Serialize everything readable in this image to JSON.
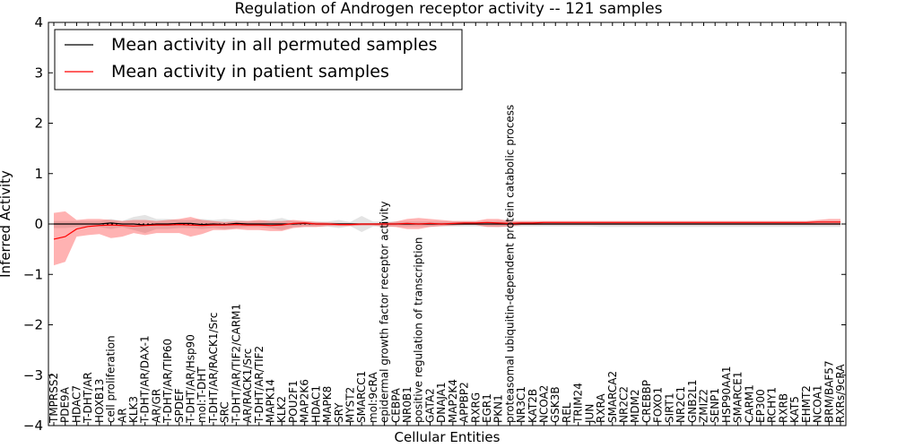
{
  "chart_data": {
    "type": "line",
    "title": "Regulation of Androgen receptor activity -- 121 samples",
    "xlabel": "Cellular Entities",
    "ylabel": "Inferred Activity",
    "ylim": [
      -4,
      4
    ],
    "yticks": [
      "-4",
      "-3",
      "-2",
      "-1",
      "0",
      "1",
      "2",
      "3",
      "4"
    ],
    "legend": {
      "placement": "top-left",
      "entries": [
        {
          "label": "Mean activity in all permuted samples",
          "color": "#000000"
        },
        {
          "label": "Mean activity in patient samples",
          "color": "#ff0000"
        }
      ]
    },
    "categories": [
      "TMPRSS2",
      "PDE9A",
      "HDAC7",
      "T-DHT/AR",
      "HOXB13",
      "cell proliferation",
      "AR",
      "KLK3",
      "T-DHT/AR/DAX-1",
      "AR/GR",
      "T-DHT/AR/TIP60",
      "SPDEF",
      "T-DHT/AR/Hsp90",
      "mol:T-DHT",
      "T-DHT/AR/RACK1/Src",
      "SRC",
      "T-DHT/AR/TIF2/CARM1",
      "AR/RACK1/Src",
      "T-DHT/AR/TIF2",
      "MAPK14",
      "KLK2",
      "POU2F1",
      "MAP2K6",
      "HDAC1",
      "MAPK8",
      "SRY",
      "MYST2",
      "SMARCC1",
      "mol:9cRA",
      "epidermal growth factor receptor activity",
      "CEBPA",
      "NR0B1",
      "positive regulation of transcription",
      "GATA2",
      "DNAJA1",
      "MAP2K4",
      "APPBP2",
      "RXRG",
      "EGR1",
      "PKN1",
      "proteasomal ubiquitin-dependent protein catabolic process",
      "NR3C1",
      "KAT2B",
      "NCOA2",
      "GSK3B",
      "REL",
      "TRIM24",
      "JUN",
      "RXRA",
      "SMARCA2",
      "NR2C2",
      "MDM2",
      "CREBBP",
      "FOXO1",
      "SIRT1",
      "NR2C1",
      "GNB2L1",
      "ZMIZ2",
      "SENP1",
      "HSP90AA1",
      "SMARCE1",
      "CARM1",
      "EP300",
      "RCHY1",
      "RXRB",
      "KAT5",
      "EHMT2",
      "NCOA1",
      "BRM/BAF57",
      "RXRs/9cRA"
    ],
    "series": [
      {
        "name": "Mean activity in all permuted samples",
        "color": "#000000",
        "values": [
          0,
          0,
          0,
          0,
          0,
          0.02,
          0,
          0,
          -0.02,
          0,
          0,
          0.01,
          0.01,
          -0.01,
          0,
          -0.01,
          0.01,
          0,
          0,
          0,
          0,
          0,
          0.01,
          0,
          0,
          0,
          0,
          0,
          0,
          0,
          0,
          0,
          0,
          0,
          0,
          0,
          0,
          0,
          0,
          0,
          0,
          0,
          0,
          0,
          0,
          0,
          0,
          0,
          0,
          0,
          0,
          0,
          0,
          0,
          0,
          0,
          0,
          0,
          0,
          0,
          0,
          0,
          0,
          0,
          0,
          0,
          0,
          0,
          0,
          0
        ]
      },
      {
        "name": "Mean activity in patient samples",
        "color": "#ff0000",
        "values": [
          -0.3,
          -0.25,
          -0.1,
          -0.05,
          -0.03,
          -0.02,
          -0.03,
          -0.04,
          -0.03,
          -0.02,
          -0.02,
          -0.01,
          -0.02,
          -0.03,
          -0.02,
          -0.02,
          -0.01,
          -0.02,
          -0.02,
          -0.03,
          -0.02,
          0.01,
          0.02,
          0,
          0,
          -0.01,
          -0.01,
          0,
          0,
          0,
          0,
          0.01,
          0,
          0.01,
          0,
          0.01,
          0.02,
          0.02,
          0.03,
          0.02,
          0.01,
          0.02,
          0.02,
          0.03,
          0.03,
          0.03,
          0.03,
          0.03,
          0.03,
          0.03,
          0.03,
          0.03,
          0.03,
          0.03,
          0.03,
          0.03,
          0.03,
          0.03,
          0.03,
          0.03,
          0.03,
          0.03,
          0.03,
          0.03,
          0.03,
          0.03,
          0.03,
          0.04,
          0.04,
          0.04
        ]
      }
    ],
    "bands": [
      {
        "name": "permuted spread",
        "color": "#d9d9d9",
        "lower": [
          -0.08,
          -0.08,
          -0.06,
          -0.06,
          -0.06,
          -0.1,
          -0.06,
          -0.12,
          -0.18,
          -0.1,
          -0.1,
          -0.08,
          -0.08,
          -0.1,
          -0.08,
          -0.1,
          -0.08,
          -0.06,
          -0.06,
          -0.08,
          -0.12,
          -0.06,
          -0.05,
          -0.05,
          -0.05,
          -0.08,
          -0.04,
          -0.16,
          -0.05,
          -0.05,
          -0.05,
          -0.05,
          -0.05,
          -0.05,
          -0.05,
          -0.05,
          -0.05,
          -0.05,
          -0.05,
          -0.06,
          -0.05,
          -0.05,
          -0.05,
          -0.05,
          -0.05,
          -0.05,
          -0.05,
          -0.05,
          -0.06,
          -0.06,
          -0.06,
          -0.06,
          -0.06,
          -0.06,
          -0.06,
          -0.06,
          -0.06,
          -0.06,
          -0.06,
          -0.06,
          -0.06,
          -0.06,
          -0.06,
          -0.06,
          -0.06,
          -0.06,
          -0.06,
          -0.06,
          -0.06,
          -0.06
        ],
        "upper": [
          0.06,
          0.06,
          0.06,
          0.06,
          0.06,
          0.1,
          0.06,
          0.14,
          0.18,
          0.1,
          0.1,
          0.08,
          0.08,
          0.1,
          0.08,
          0.1,
          0.08,
          0.06,
          0.06,
          0.08,
          0.12,
          0.06,
          0.05,
          0.05,
          0.05,
          0.08,
          0.04,
          0.16,
          0.05,
          0.05,
          0.05,
          0.05,
          0.05,
          0.05,
          0.05,
          0.05,
          0.05,
          0.05,
          0.05,
          0.06,
          0.05,
          0.05,
          0.05,
          0.05,
          0.05,
          0.05,
          0.05,
          0.05,
          0.05,
          0.05,
          0.05,
          0.05,
          0.05,
          0.05,
          0.05,
          0.05,
          0.05,
          0.05,
          0.05,
          0.05,
          0.05,
          0.05,
          0.05,
          0.05,
          0.05,
          0.05,
          0.05,
          0.06,
          0.06,
          0.06
        ]
      },
      {
        "name": "patient spread",
        "color": "#ff0000",
        "lower": [
          -0.82,
          -0.75,
          -0.25,
          -0.22,
          -0.2,
          -0.28,
          -0.25,
          -0.18,
          -0.22,
          -0.18,
          -0.18,
          -0.18,
          -0.25,
          -0.2,
          -0.12,
          -0.12,
          -0.1,
          -0.12,
          -0.12,
          -0.14,
          -0.14,
          -0.08,
          -0.06,
          -0.06,
          -0.04,
          -0.04,
          -0.04,
          -0.03,
          -0.03,
          -0.05,
          -0.06,
          -0.1,
          -0.1,
          -0.06,
          -0.04,
          -0.03,
          -0.02,
          -0.02,
          -0.06,
          -0.06,
          -0.05,
          -0.02,
          -0.02,
          -0.02,
          -0.02,
          -0.02,
          -0.02,
          -0.02,
          -0.02,
          -0.02,
          -0.02,
          -0.02,
          -0.02,
          -0.02,
          -0.02,
          -0.02,
          -0.02,
          -0.02,
          -0.02,
          -0.02,
          -0.02,
          -0.02,
          -0.02,
          -0.02,
          -0.02,
          -0.02,
          -0.02,
          -0.02,
          -0.02,
          -0.02
        ],
        "upper": [
          0.22,
          0.25,
          0.08,
          0.1,
          0.1,
          0.08,
          0.06,
          0.08,
          0.08,
          0.06,
          0.08,
          0.1,
          0.14,
          0.08,
          0.06,
          0.04,
          0.06,
          0.06,
          0.08,
          0.06,
          0.06,
          0.08,
          0.06,
          0.04,
          0.03,
          0.02,
          0.02,
          0.01,
          0.01,
          0.02,
          0.05,
          0.1,
          0.12,
          0.1,
          0.08,
          0.06,
          0.06,
          0.06,
          0.1,
          0.1,
          0.06,
          0.06,
          0.06,
          0.06,
          0.06,
          0.06,
          0.06,
          0.06,
          0.06,
          0.06,
          0.06,
          0.06,
          0.06,
          0.06,
          0.06,
          0.06,
          0.06,
          0.06,
          0.06,
          0.06,
          0.06,
          0.06,
          0.06,
          0.06,
          0.06,
          0.06,
          0.06,
          0.08,
          0.1,
          0.1
        ]
      }
    ]
  }
}
